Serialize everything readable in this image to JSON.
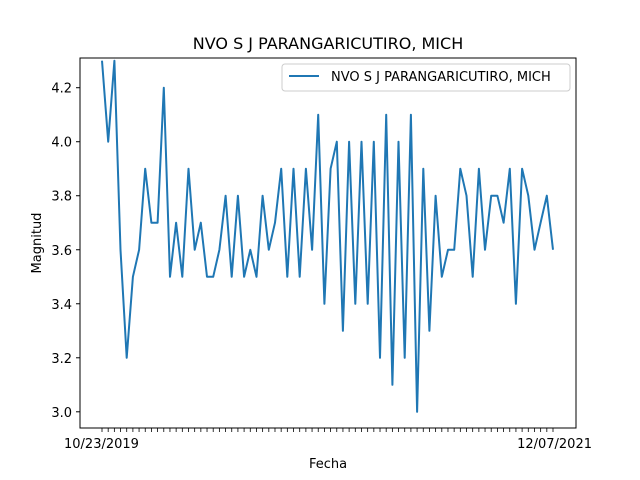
{
  "chart_data": {
    "type": "line",
    "title": "NVO S J PARANGARICUTIRO, MICH",
    "xlabel": "Fecha",
    "ylabel": "Magnitud",
    "ylim": [
      2.94,
      4.31
    ],
    "yticks": [
      3.0,
      3.2,
      3.4,
      3.6,
      3.8,
      4.0,
      4.2
    ],
    "ytick_labels": [
      "3.0",
      "3.2",
      "3.4",
      "3.6",
      "3.8",
      "4.0",
      "4.2"
    ],
    "x_first_tick_label": "10/23/2019",
    "x_last_tick_label": "12/07/2021",
    "grid": false,
    "legend_position": "top-right",
    "color": "#1f77b4",
    "series": [
      {
        "name": "NVO S J PARANGARICUTIRO, MICH",
        "values": [
          4.3,
          4.0,
          4.3,
          3.6,
          3.2,
          3.5,
          3.6,
          3.9,
          3.7,
          3.7,
          4.2,
          3.5,
          3.7,
          3.5,
          3.9,
          3.6,
          3.7,
          3.5,
          3.5,
          3.6,
          3.8,
          3.5,
          3.8,
          3.5,
          3.6,
          3.5,
          3.8,
          3.6,
          3.7,
          3.9,
          3.5,
          3.9,
          3.5,
          3.9,
          3.6,
          4.1,
          3.4,
          3.9,
          4.0,
          3.3,
          4.0,
          3.4,
          4.0,
          3.4,
          4.0,
          3.2,
          4.1,
          3.1,
          4.0,
          3.2,
          4.1,
          3.0,
          3.9,
          3.3,
          3.8,
          3.5,
          3.6,
          3.6,
          3.9,
          3.8,
          3.5,
          3.9,
          3.6,
          3.8,
          3.8,
          3.7,
          3.9,
          3.4,
          3.9,
          3.8,
          3.6,
          3.7,
          3.8,
          3.6
        ]
      }
    ]
  }
}
